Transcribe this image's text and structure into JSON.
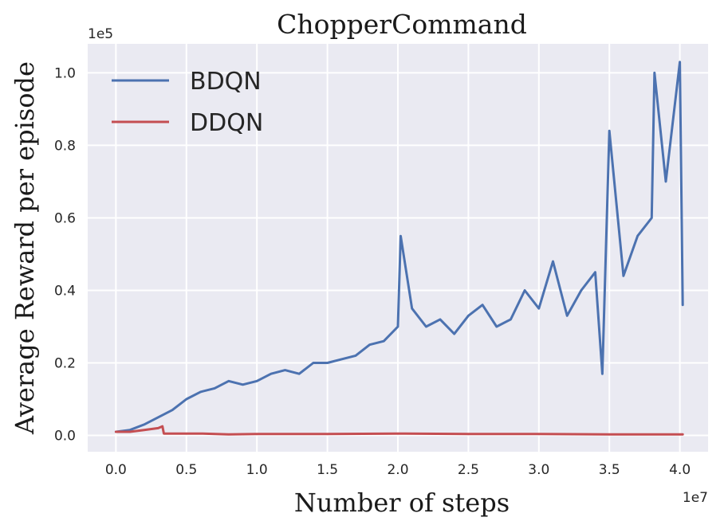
{
  "chart_data": {
    "type": "line",
    "title": "ChopperCommand",
    "xlabel": "Number of steps",
    "ylabel": "Average Reward per episode",
    "x_offset_label": "1e7",
    "y_offset_label": "1e5",
    "x_scale": 10000000,
    "y_scale": 100000,
    "xlim": [
      -0.2,
      4.2
    ],
    "ylim": [
      -0.045,
      1.08
    ],
    "xticks": [
      0.0,
      0.5,
      1.0,
      1.5,
      2.0,
      2.5,
      3.0,
      3.5,
      4.0
    ],
    "xtick_labels": [
      "0.0",
      "0.5",
      "1.0",
      "1.5",
      "2.0",
      "2.5",
      "3.0",
      "3.5",
      "4.0"
    ],
    "yticks": [
      0.0,
      0.2,
      0.4,
      0.6,
      0.8,
      1.0
    ],
    "ytick_labels": [
      "0.0",
      "0.2",
      "0.4",
      "0.6",
      "0.8",
      "1.0"
    ],
    "grid": true,
    "legend_position": "upper-left",
    "background": "#eaeaf2",
    "series": [
      {
        "name": "BDQN",
        "color": "#4c72b0",
        "x": [
          0.0,
          0.1,
          0.2,
          0.3,
          0.4,
          0.5,
          0.6,
          0.7,
          0.8,
          0.9,
          1.0,
          1.1,
          1.2,
          1.3,
          1.4,
          1.5,
          1.6,
          1.7,
          1.8,
          1.9,
          2.0,
          2.02,
          2.1,
          2.2,
          2.3,
          2.4,
          2.5,
          2.6,
          2.7,
          2.8,
          2.9,
          3.0,
          3.1,
          3.2,
          3.3,
          3.4,
          3.45,
          3.5,
          3.6,
          3.7,
          3.8,
          3.82,
          3.9,
          4.0,
          4.02
        ],
        "y": [
          0.01,
          0.015,
          0.03,
          0.05,
          0.07,
          0.1,
          0.12,
          0.13,
          0.15,
          0.14,
          0.15,
          0.17,
          0.18,
          0.17,
          0.2,
          0.2,
          0.21,
          0.22,
          0.25,
          0.26,
          0.3,
          0.55,
          0.35,
          0.3,
          0.32,
          0.28,
          0.33,
          0.36,
          0.3,
          0.32,
          0.4,
          0.35,
          0.48,
          0.33,
          0.4,
          0.45,
          0.17,
          0.84,
          0.44,
          0.55,
          0.6,
          1.0,
          0.7,
          1.03,
          0.36
        ]
      },
      {
        "name": "DDQN",
        "color": "#c44e52",
        "x": [
          0.0,
          0.1,
          0.2,
          0.3,
          0.33,
          0.34,
          0.4,
          0.6,
          0.8,
          1.0,
          1.5,
          2.0,
          2.5,
          3.0,
          3.5,
          4.0,
          4.02
        ],
        "y": [
          0.01,
          0.01,
          0.015,
          0.02,
          0.025,
          0.005,
          0.005,
          0.005,
          0.003,
          0.004,
          0.004,
          0.005,
          0.004,
          0.004,
          0.003,
          0.003,
          0.003
        ]
      }
    ]
  }
}
